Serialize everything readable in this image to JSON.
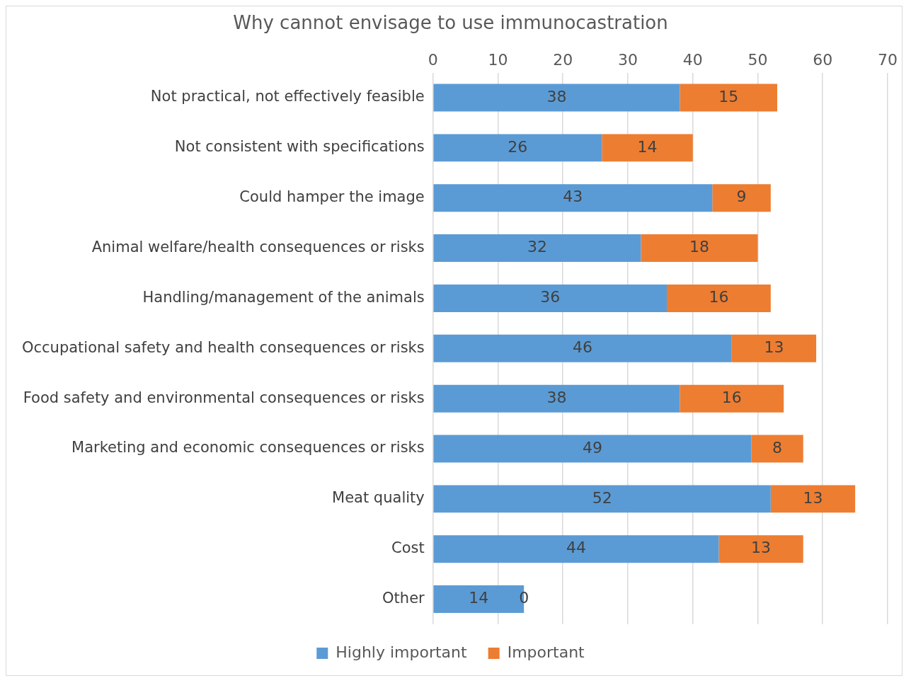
{
  "chart_data": {
    "type": "bar",
    "title": "Why cannot envisage to use immunocastration",
    "orientation": "horizontal",
    "stacked": true,
    "categories": [
      "Not practical, not effectively feasible",
      "Not consistent with specifications",
      "Could hamper the image",
      "Animal welfare/health consequences or risks",
      "Handling/management of the animals",
      "Occupational safety and health consequences or risks",
      "Food safety and environmental consequences or risks",
      "Marketing and economic consequences or risks",
      "Meat quality",
      "Cost",
      "Other"
    ],
    "series": [
      {
        "name": "Highly important",
        "color": "#5b9bd5",
        "values": [
          38,
          26,
          43,
          32,
          36,
          46,
          38,
          49,
          52,
          44,
          14
        ]
      },
      {
        "name": "Important",
        "color": "#ed7d31",
        "values": [
          15,
          14,
          9,
          18,
          16,
          13,
          16,
          8,
          13,
          13,
          0
        ]
      }
    ],
    "xlim": [
      0,
      70
    ],
    "xticks": [
      0,
      10,
      20,
      30,
      40,
      50,
      60,
      70
    ],
    "grid": "x",
    "legend": "bottom",
    "data_labels": true
  }
}
